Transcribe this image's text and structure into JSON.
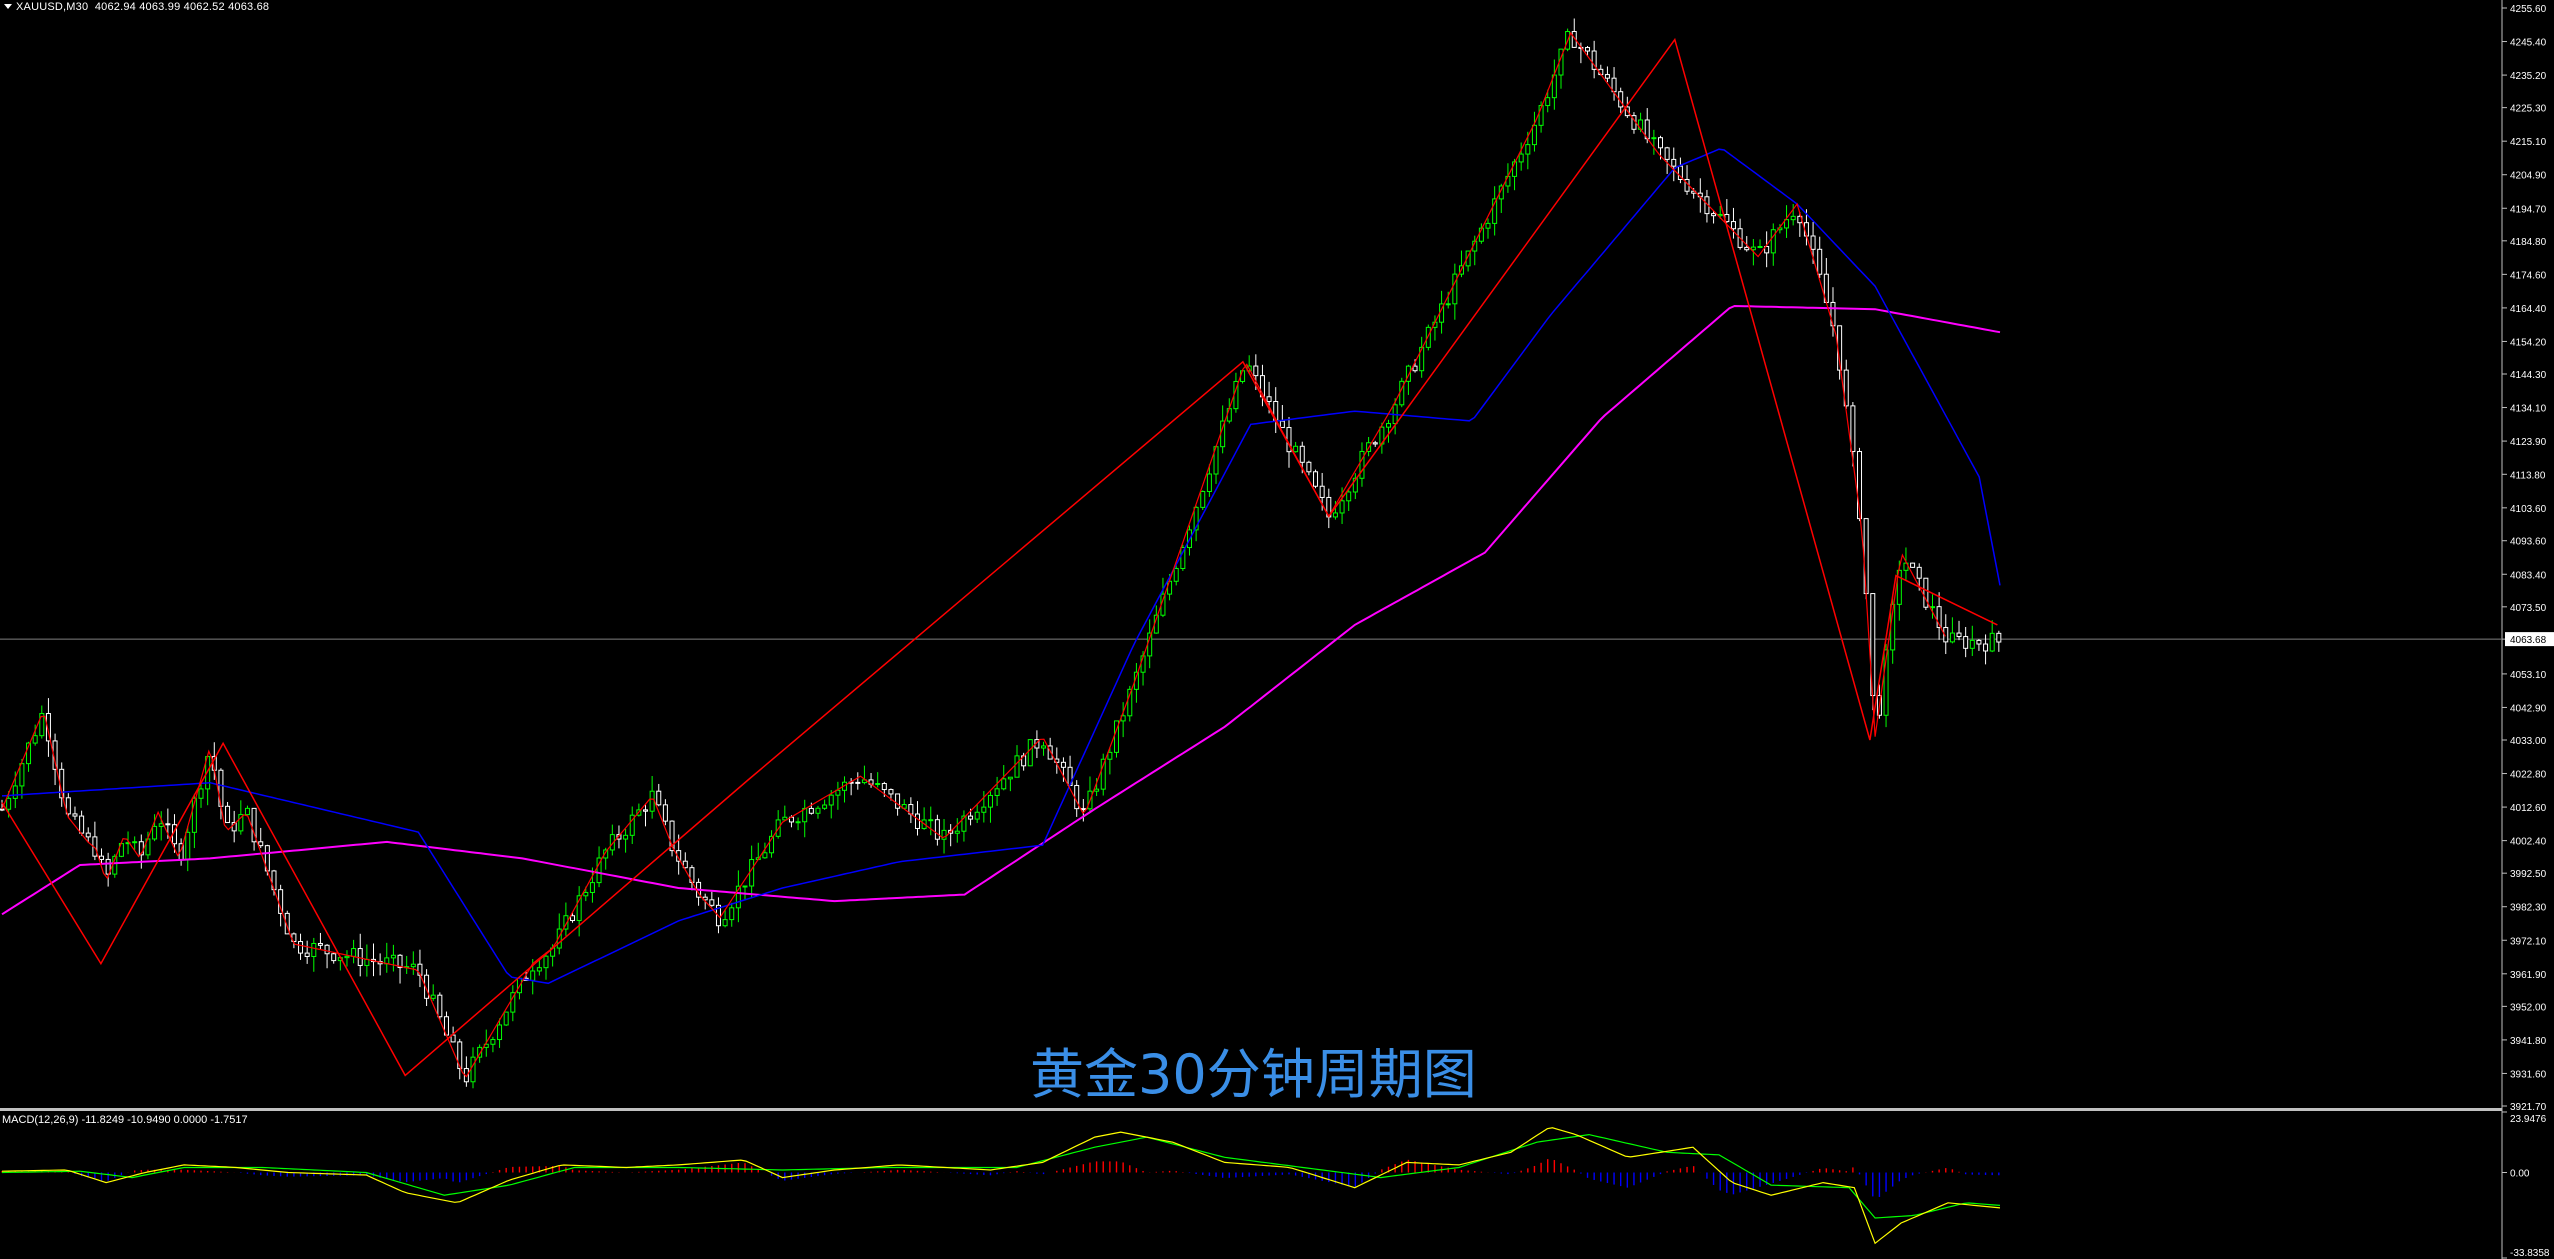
{
  "header": {
    "symbol": "XAUUSD,M30",
    "quote": "4062.94 4063.99 4062.52 4063.68"
  },
  "watermark": "黄金30分钟周期图",
  "macd_header": "MACD(12,26,9) -11.8249 -10.9490 0.0000 -1.7517",
  "price_axis": {
    "labels": [
      "4255.60",
      "4245.40",
      "4235.20",
      "4225.30",
      "4215.10",
      "4204.90",
      "4194.70",
      "4184.80",
      "4174.60",
      "4164.40",
      "4154.20",
      "4144.30",
      "4134.10",
      "4123.90",
      "4113.80",
      "4103.60",
      "4093.60",
      "4083.40",
      "4073.50",
      "4063.68",
      "4053.10",
      "4042.90",
      "4033.00",
      "4022.80",
      "4012.60",
      "4002.40",
      "3992.50",
      "3982.30",
      "3972.10",
      "3961.90",
      "3952.00",
      "3941.80",
      "3931.60",
      "3921.70"
    ],
    "current_price": "4063.68"
  },
  "macd_axis": {
    "labels": [
      "23.9476",
      "0.00",
      "-33.8358"
    ]
  },
  "colors": {
    "background": "#000000",
    "bull_candle": "#00ff00",
    "bear_candle": "#ffffff",
    "zigzag": "#ff0000",
    "ma_fast": "#ff0000",
    "ma_mid": "#0000ff",
    "ma_slow": "#ff00ff",
    "macd_line": "#ffff00",
    "signal_line": "#00ff00",
    "hist_pos": "#ff0000",
    "hist_neg": "#0000ff",
    "current_price_line": "#808080"
  },
  "chart_data": {
    "type": "candlestick",
    "title": "黄金30分钟周期图",
    "symbol": "XAUUSD,M30",
    "ylim": [
      3921.7,
      4255.6
    ],
    "bars": 300,
    "zigzag": [
      [
        0,
        4012
      ],
      [
        16,
        4042
      ],
      [
        25,
        4010
      ],
      [
        33,
        4002
      ],
      [
        36,
        4000
      ],
      [
        40,
        3990
      ],
      [
        47,
        4004
      ],
      [
        53,
        3997
      ],
      [
        60,
        4011
      ],
      [
        68,
        3997
      ],
      [
        80,
        4031
      ],
      [
        86,
        4005
      ],
      [
        94,
        4011
      ],
      [
        112,
        3971
      ],
      [
        160,
        3963
      ],
      [
        178,
        3930
      ],
      [
        204,
        3965
      ],
      [
        212,
        3970
      ],
      [
        232,
        3999
      ],
      [
        250,
        4016
      ],
      [
        258,
        4000
      ],
      [
        268,
        3986
      ],
      [
        276,
        3979
      ],
      [
        300,
        4008
      ],
      [
        330,
        4022
      ],
      [
        362,
        4003
      ],
      [
        400,
        4034
      ],
      [
        416,
        4010
      ],
      [
        435,
        4050
      ],
      [
        478,
        4148
      ],
      [
        492,
        4127
      ],
      [
        510,
        4101
      ],
      [
        535,
        4135
      ],
      [
        590,
        4222
      ],
      [
        603,
        4248
      ],
      [
        637,
        4211
      ],
      [
        675,
        4180
      ],
      [
        690,
        4196
      ],
      [
        705,
        4156
      ],
      [
        715,
        4097
      ],
      [
        720,
        4034
      ],
      [
        730,
        4090
      ],
      [
        748,
        4063
      ]
    ],
    "zigzag_major": [
      [
        0,
        4014
      ],
      [
        38,
        3965
      ],
      [
        85,
        4032
      ],
      [
        155,
        3931
      ],
      [
        287,
        4021
      ],
      [
        477,
        4148
      ],
      [
        510,
        4101
      ],
      [
        643,
        4246
      ],
      [
        718,
        4033
      ],
      [
        728,
        4083
      ],
      [
        767,
        4068
      ]
    ],
    "ma_mid_points": [
      [
        0,
        4016
      ],
      [
        80,
        4020
      ],
      [
        160,
        4005
      ],
      [
        195,
        3961
      ],
      [
        210,
        3959
      ],
      [
        260,
        3978
      ],
      [
        300,
        3988
      ],
      [
        345,
        3996
      ],
      [
        400,
        4001
      ],
      [
        435,
        4062
      ],
      [
        480,
        4129
      ],
      [
        520,
        4133
      ],
      [
        565,
        4130
      ],
      [
        595,
        4162
      ],
      [
        643,
        4207
      ],
      [
        661,
        4213
      ],
      [
        690,
        4196
      ],
      [
        720,
        4171
      ],
      [
        760,
        4113
      ],
      [
        768,
        4080
      ]
    ],
    "ma_slow_points": [
      [
        0,
        3980
      ],
      [
        30,
        3995
      ],
      [
        80,
        3997
      ],
      [
        148,
        4002
      ],
      [
        200,
        3997
      ],
      [
        260,
        3988
      ],
      [
        320,
        3984
      ],
      [
        370,
        3986
      ],
      [
        420,
        4012
      ],
      [
        470,
        4037
      ],
      [
        520,
        4068
      ],
      [
        570,
        4090
      ],
      [
        615,
        4131
      ],
      [
        665,
        4165
      ],
      [
        720,
        4164
      ],
      [
        768,
        4157
      ]
    ],
    "macd": {
      "ylim": [
        -33.8358,
        23.9476
      ],
      "macd_line": [
        [
          0,
          0.5
        ],
        [
          25,
          1
        ],
        [
          40,
          -4
        ],
        [
          55,
          0
        ],
        [
          70,
          3
        ],
        [
          90,
          2
        ],
        [
          110,
          0
        ],
        [
          140,
          -1
        ],
        [
          155,
          -8
        ],
        [
          175,
          -12
        ],
        [
          195,
          -3
        ],
        [
          215,
          3
        ],
        [
          240,
          2
        ],
        [
          260,
          3
        ],
        [
          285,
          5
        ],
        [
          300,
          -2
        ],
        [
          320,
          1
        ],
        [
          345,
          3
        ],
        [
          380,
          1
        ],
        [
          400,
          4
        ],
        [
          420,
          14
        ],
        [
          430,
          16
        ],
        [
          450,
          12
        ],
        [
          470,
          4
        ],
        [
          495,
          2
        ],
        [
          520,
          -6
        ],
        [
          540,
          4
        ],
        [
          560,
          3
        ],
        [
          580,
          8
        ],
        [
          595,
          18
        ],
        [
          605,
          15
        ],
        [
          625,
          6
        ],
        [
          650,
          10
        ],
        [
          665,
          -4
        ],
        [
          680,
          -9
        ],
        [
          700,
          -4
        ],
        [
          712,
          -6
        ],
        [
          720,
          -28
        ],
        [
          730,
          -20
        ],
        [
          748,
          -12
        ],
        [
          768,
          -14
        ]
      ],
      "signal_line": [
        [
          0,
          0
        ],
        [
          30,
          0.5
        ],
        [
          50,
          -2
        ],
        [
          70,
          2
        ],
        [
          100,
          2
        ],
        [
          140,
          0
        ],
        [
          170,
          -9
        ],
        [
          195,
          -5
        ],
        [
          220,
          2
        ],
        [
          260,
          2
        ],
        [
          300,
          1
        ],
        [
          340,
          2
        ],
        [
          390,
          2
        ],
        [
          420,
          10
        ],
        [
          440,
          14
        ],
        [
          470,
          6
        ],
        [
          500,
          2
        ],
        [
          530,
          -2
        ],
        [
          560,
          2
        ],
        [
          590,
          12
        ],
        [
          610,
          15
        ],
        [
          640,
          8
        ],
        [
          660,
          7
        ],
        [
          680,
          -5
        ],
        [
          710,
          -6
        ],
        [
          720,
          -18
        ],
        [
          735,
          -17
        ],
        [
          755,
          -12
        ],
        [
          768,
          -13
        ]
      ]
    }
  }
}
